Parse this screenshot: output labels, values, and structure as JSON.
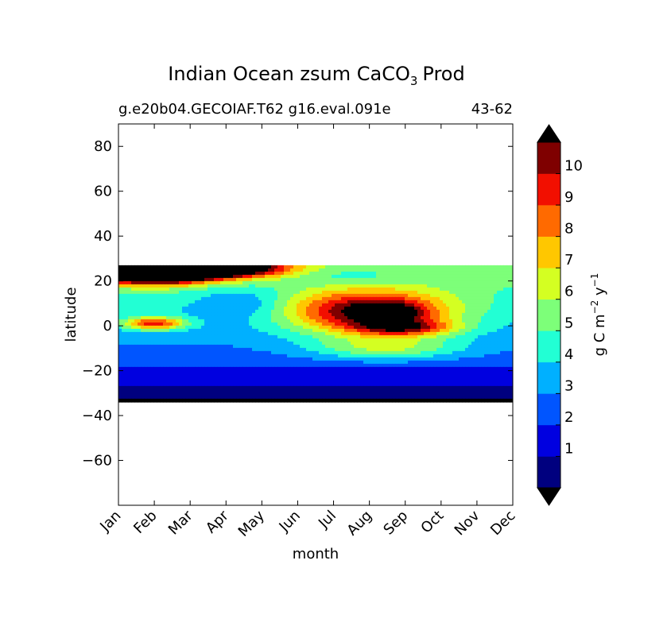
{
  "chart_data": {
    "type": "filled-contour",
    "title_main": "Indian Ocean zsum CaCO",
    "title_sub": "3",
    "title_end": "Prod",
    "subtitle_left": "g.e20b04.GECOIAF.T62 g16.eval.091e",
    "subtitle_right": "43-62",
    "xlabel": "month",
    "ylabel": "latitude",
    "x_ticks": [
      "Jan",
      "Feb",
      "Mar",
      "Apr",
      "May",
      "Jun",
      "Jul",
      "Aug",
      "Sep",
      "Oct",
      "Nov",
      "Dec"
    ],
    "x_range": [
      0,
      11
    ],
    "y_range": [
      -80,
      90
    ],
    "y_ticks": [
      80,
      60,
      40,
      20,
      0,
      -20,
      -40,
      -60
    ],
    "y_tick_labels": [
      "80",
      "60",
      "40",
      "20",
      "0",
      "−20",
      "−40",
      "−60"
    ],
    "data_lat_range": [
      -34,
      27
    ],
    "colorbar": {
      "label": "g C m",
      "label_sup1": "−2",
      "label_mid": " y",
      "label_sup2": "−1",
      "levels": [
        0,
        1,
        2,
        3,
        4,
        5,
        6,
        7,
        8,
        9,
        10,
        11
      ],
      "tick_labels": [
        "1",
        "2",
        "3",
        "4",
        "5",
        "6",
        "7",
        "8",
        "9",
        "10"
      ],
      "tick_values": [
        1,
        2,
        3,
        4,
        5,
        6,
        7,
        8,
        9,
        10
      ],
      "colors": [
        "#00007f",
        "#0000e0",
        "#0055ff",
        "#00b0ff",
        "#22ffd4",
        "#7dff79",
        "#d4ff22",
        "#ffc700",
        "#ff6a00",
        "#f20f00",
        "#7f0000"
      ],
      "extend_low_color": "#000000",
      "extend_high_color": "#000000",
      "extend": "both"
    },
    "features": [
      {
        "month": 0.9,
        "lat": 24,
        "amp": 14,
        "sx": 1.1,
        "sy": 3.5
      },
      {
        "month": 2.6,
        "lat": 26,
        "amp": 12,
        "sx": 1.3,
        "sy": 3.0
      },
      {
        "month": 1.0,
        "lat": 1,
        "amp": 6,
        "sx": 0.6,
        "sy": 2.0
      },
      {
        "month": 7.0,
        "lat": 6,
        "amp": 7.5,
        "sx": 1.6,
        "sy": 7.0
      },
      {
        "month": 7.6,
        "lat": 6,
        "amp": 3.0,
        "sx": 0.6,
        "sy": 2.8
      },
      {
        "month": 8.0,
        "lat": -1,
        "amp": 4.5,
        "sx": 1.0,
        "sy": 2.5
      },
      {
        "month": 7.5,
        "lat": -10,
        "amp": 3.0,
        "sx": 1.5,
        "sy": 3.5
      },
      {
        "month": 3.5,
        "lat": 10,
        "amp": -1.6,
        "sx": 0.9,
        "sy": 5.0
      },
      {
        "month": 6.5,
        "lat": 22,
        "amp": -1.0,
        "sx": 1.0,
        "sy": 3.0
      }
    ]
  }
}
